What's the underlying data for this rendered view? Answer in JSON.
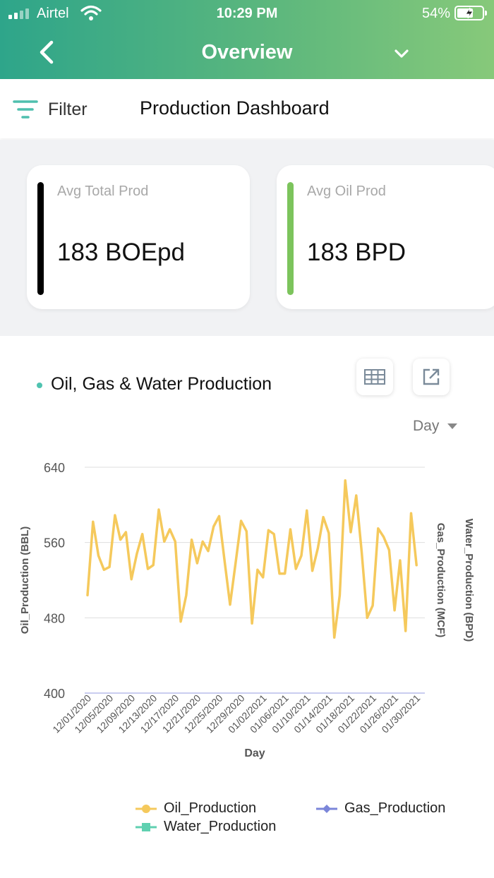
{
  "status": {
    "carrier": "Airtel",
    "time": "10:29 PM",
    "battery": "54%"
  },
  "nav": {
    "title": "Overview"
  },
  "subheader": {
    "filter_label": "Filter",
    "title": "Production Dashboard"
  },
  "cards": [
    {
      "label": "Avg Total Prod",
      "value": "183 BOEpd",
      "accent": "#000000"
    },
    {
      "label": "Avg Oil Prod",
      "value": "183 BPD",
      "accent": "#7cc45c"
    }
  ],
  "chart_section": {
    "title": "Oil, Gas & Water Production",
    "period": "Day"
  },
  "chart_data": {
    "type": "line",
    "xlabel": "Day",
    "ylabel": "Oil_Production (BBL)",
    "ylabel_right": [
      "Gas_Production (MCF)",
      "Water_Production (BPD)"
    ],
    "ylim": [
      400,
      640
    ],
    "yticks": [
      400,
      480,
      560,
      640
    ],
    "xticks": [
      "12/01/2020",
      "12/05/2020",
      "12/09/2020",
      "12/13/2020",
      "12/17/2020",
      "12/21/2020",
      "12/25/2020",
      "12/29/2020",
      "01/02/2021",
      "01/06/2021",
      "01/10/2021",
      "01/14/2021",
      "01/18/2021",
      "01/22/2021",
      "01/26/2021",
      "01/30/2021"
    ],
    "x_start": "12/01/2020",
    "x_end": "01/31/2021",
    "grid": true,
    "legend": "bottom",
    "series": [
      {
        "name": "Oil_Production",
        "color": "#f5c95c",
        "marker": "circle",
        "values": [
          504,
          582,
          546,
          531,
          534,
          589,
          563,
          571,
          521,
          548,
          569,
          532,
          536,
          595,
          561,
          574,
          561,
          476,
          504,
          563,
          538,
          561,
          551,
          577,
          588,
          540,
          494,
          538,
          583,
          572,
          474,
          531,
          523,
          573,
          569,
          527,
          527,
          574,
          532,
          546,
          594,
          530,
          554,
          587,
          570,
          459,
          504,
          626,
          571,
          610,
          550,
          480,
          493,
          575,
          566,
          552,
          488,
          541,
          466,
          591,
          536
        ]
      },
      {
        "name": "Gas_Production",
        "color": "#7b86d9",
        "marker": "diamond",
        "values": []
      },
      {
        "name": "Water_Production",
        "color": "#5fd0b0",
        "marker": "square",
        "values": []
      }
    ]
  }
}
